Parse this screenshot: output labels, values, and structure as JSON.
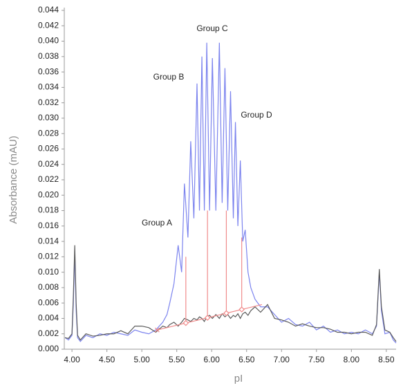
{
  "chart_data": {
    "type": "line",
    "y_label": "Absorbance (mAU)",
    "x_label": "pI",
    "xlim": [
      3.89,
      8.64
    ],
    "ylim": [
      0,
      0.044
    ],
    "xticks": [
      {
        "value": 4,
        "label": "4.00"
      },
      {
        "value": 4.5,
        "label": "4.50"
      },
      {
        "value": 5,
        "label": "5.00"
      },
      {
        "value": 5.5,
        "label": "5.50"
      },
      {
        "value": 6,
        "label": "6.00"
      },
      {
        "value": 6.5,
        "label": "6.50"
      },
      {
        "value": 7,
        "label": "7.00"
      },
      {
        "value": 7.5,
        "label": "7.50"
      },
      {
        "value": 8,
        "label": "8.00"
      },
      {
        "value": 8.5,
        "label": "8.50"
      }
    ],
    "yticks": [
      {
        "value": 0,
        "label": "0.000"
      },
      {
        "value": 0.002,
        "label": "0.002"
      },
      {
        "value": 0.004,
        "label": "0.004"
      },
      {
        "value": 0.006,
        "label": "0.006"
      },
      {
        "value": 0.008,
        "label": "0.008"
      },
      {
        "value": 0.01,
        "label": "0.010"
      },
      {
        "value": 0.012,
        "label": "0.012"
      },
      {
        "value": 0.014,
        "label": "0.014"
      },
      {
        "value": 0.016,
        "label": "0.016"
      },
      {
        "value": 0.018,
        "label": "0.018"
      },
      {
        "value": 0.02,
        "label": "0.020"
      },
      {
        "value": 0.022,
        "label": "0.022"
      },
      {
        "value": 0.024,
        "label": "0.024"
      },
      {
        "value": 0.026,
        "label": "0.026"
      },
      {
        "value": 0.028,
        "label": "0.028"
      },
      {
        "value": 0.03,
        "label": "0.030"
      },
      {
        "value": 0.032,
        "label": "0.032"
      },
      {
        "value": 0.034,
        "label": "0.034"
      },
      {
        "value": 0.036,
        "label": "0.036"
      },
      {
        "value": 0.038,
        "label": "0.038"
      },
      {
        "value": 0.04,
        "label": "0.040"
      },
      {
        "value": 0.042,
        "label": "0.042"
      },
      {
        "value": 0.044,
        "label": "0.044"
      }
    ],
    "x": [
      3.9,
      3.95,
      4,
      4.02,
      4.04,
      4.06,
      4.08,
      4.12,
      4.2,
      4.3,
      4.4,
      4.5,
      4.6,
      4.7,
      4.8,
      4.9,
      5,
      5.1,
      5.2,
      5.3,
      5.36,
      5.4,
      5.46,
      5.52,
      5.57,
      5.61,
      5.66,
      5.7,
      5.745,
      5.79,
      5.825,
      5.86,
      5.895,
      5.93,
      5.97,
      6.01,
      6.06,
      6.11,
      6.15,
      6.19,
      6.23,
      6.27,
      6.31,
      6.34,
      6.375,
      6.41,
      6.445,
      6.48,
      6.52,
      6.56,
      6.62,
      6.7,
      6.8,
      6.9,
      7,
      7.1,
      7.2,
      7.3,
      7.4,
      7.5,
      7.6,
      7.7,
      7.8,
      7.9,
      8,
      8.1,
      8.2,
      8.3,
      8.36,
      8.4,
      8.43,
      8.48,
      8.55,
      8.6,
      8.64
    ],
    "series": [
      {
        "color": "#7b83ee",
        "values": [
          0.0015,
          0.0012,
          0.0018,
          0.006,
          0.0125,
          0.005,
          0.0015,
          0.001,
          0.0018,
          0.0015,
          0.002,
          0.0018,
          0.0022,
          0.002,
          0.0018,
          0.0025,
          0.0022,
          0.002,
          0.0025,
          0.0035,
          0.0045,
          0.006,
          0.0085,
          0.0135,
          0.01,
          0.0215,
          0.0145,
          0.027,
          0.017,
          0.0345,
          0.018,
          0.038,
          0.018,
          0.0398,
          0.018,
          0.0378,
          0.018,
          0.0398,
          0.019,
          0.0365,
          0.018,
          0.0335,
          0.017,
          0.0295,
          0.016,
          0.0245,
          0.014,
          0.0155,
          0.01,
          0.008,
          0.0065,
          0.0055,
          0.0055,
          0.0045,
          0.0035,
          0.004,
          0.0032,
          0.003,
          0.0035,
          0.0025,
          0.003,
          0.0022,
          0.0025,
          0.002,
          0.0022,
          0.002,
          0.0025,
          0.002,
          0.003,
          0.01,
          0.005,
          0.002,
          0.0022,
          0.0012,
          0.0008
        ]
      },
      {
        "color": "#5a5a5a",
        "values": [
          0.0015,
          0.0014,
          0.002,
          0.007,
          0.0135,
          0.006,
          0.0018,
          0.0012,
          0.002,
          0.0017,
          0.0018,
          0.002,
          0.002,
          0.0024,
          0.002,
          0.003,
          0.003,
          0.0028,
          0.0022,
          0.003,
          0.0028,
          0.0032,
          0.0035,
          0.003,
          0.0035,
          0.004,
          0.0038,
          0.0036,
          0.004,
          0.0038,
          0.0042,
          0.004,
          0.0036,
          0.0042,
          0.0044,
          0.004,
          0.0045,
          0.004,
          0.0046,
          0.0042,
          0.0045,
          0.004,
          0.0044,
          0.0042,
          0.0046,
          0.004,
          0.0046,
          0.0048,
          0.0044,
          0.005,
          0.0055,
          0.0048,
          0.0058,
          0.004,
          0.0038,
          0.0035,
          0.003,
          0.0033,
          0.003,
          0.0028,
          0.0028,
          0.0026,
          0.0022,
          0.0022,
          0.002,
          0.0022,
          0.0022,
          0.0018,
          0.0032,
          0.0104,
          0.0055,
          0.0025,
          0.0022,
          0.0015,
          0.001
        ]
      }
    ],
    "baseline": {
      "color": "#f08a8a",
      "x": [
        5.22,
        6.72
      ],
      "y": [
        0.0025,
        0.0058
      ]
    },
    "drop_lines": {
      "x": [
        5.63,
        5.94,
        6.21,
        6.43
      ],
      "top": [
        0.012,
        0.018,
        0.018,
        0.0145
      ]
    },
    "annotations": [
      "Group C",
      "Group B",
      "Group D",
      "Group A"
    ]
  }
}
